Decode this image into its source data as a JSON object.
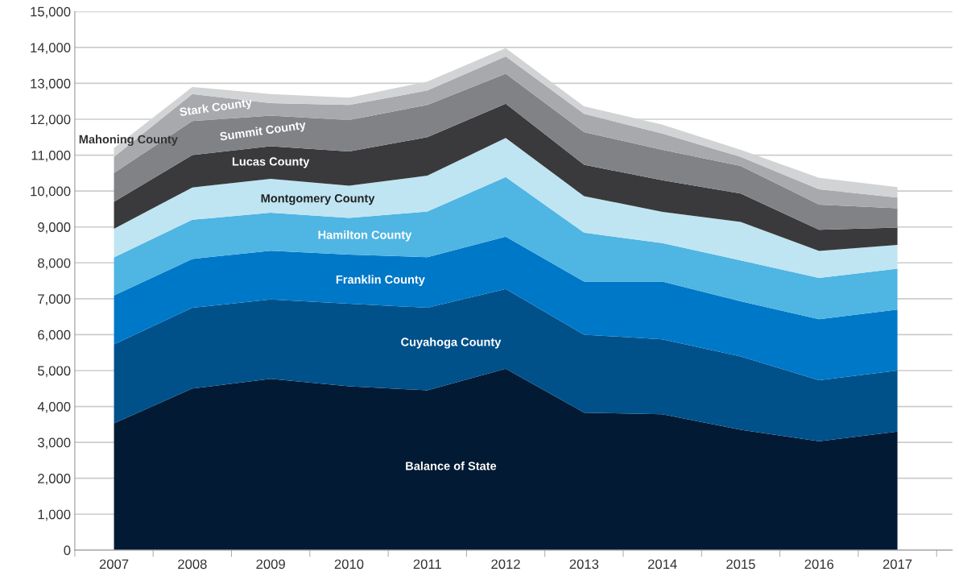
{
  "chart_data": {
    "type": "area",
    "stacked": true,
    "grid": "y",
    "legend": false,
    "categories": [
      "2007",
      "2008",
      "2009",
      "2010",
      "2011",
      "2012",
      "2013",
      "2014",
      "2015",
      "2016",
      "2017"
    ],
    "ylim": [
      0,
      15000
    ],
    "yticks": [
      0,
      {
        "value": 1000,
        "label": "1,000"
      },
      {
        "value": 2000,
        "label": "2,000"
      },
      {
        "value": 3000,
        "label": "3,000"
      },
      {
        "value": 4000,
        "label": "4,000"
      },
      {
        "value": 5000,
        "label": "5,000"
      },
      {
        "value": 6000,
        "label": "6,000"
      },
      {
        "value": 7000,
        "label": "7,000"
      },
      {
        "value": 8000,
        "label": "8,000"
      },
      {
        "value": 9000,
        "label": "9,000"
      },
      {
        "value": 10000,
        "label": "10,000"
      },
      {
        "value": 11000,
        "label": "11,000"
      },
      {
        "value": 12000,
        "label": "12,000"
      },
      {
        "value": 13000,
        "label": "13,000"
      },
      {
        "value": 14000,
        "label": "14,000"
      },
      {
        "value": 15000,
        "label": "15,000"
      }
    ],
    "series": [
      {
        "name": "Balance of State",
        "color": "#021a33",
        "values": [
          3530,
          4500,
          4770,
          4560,
          4450,
          5050,
          3830,
          3780,
          3350,
          3030,
          3300
        ]
      },
      {
        "name": "Cuyahoga County",
        "color": "#00508a",
        "values": [
          2200,
          2250,
          2210,
          2300,
          2300,
          2220,
          2170,
          2090,
          2040,
          1700,
          1700
        ]
      },
      {
        "name": "Franklin County",
        "color": "#0078c8",
        "values": [
          1360,
          1360,
          1360,
          1370,
          1410,
          1460,
          1480,
          1610,
          1540,
          1700,
          1700
        ]
      },
      {
        "name": "Hamilton County",
        "color": "#4fb5e3",
        "values": [
          1060,
          1090,
          1060,
          1020,
          1270,
          1660,
          1360,
          1070,
          1140,
          1150,
          1140
        ]
      },
      {
        "name": "Montgomery County",
        "color": "#bfe5f2",
        "values": [
          800,
          900,
          940,
          900,
          1000,
          1090,
          1020,
          870,
          1070,
          750,
          660
        ]
      },
      {
        "name": "Lucas County",
        "color": "#3a3a3c",
        "values": [
          750,
          900,
          910,
          950,
          1070,
          950,
          870,
          880,
          790,
          590,
          480
        ]
      },
      {
        "name": "Summit County",
        "color": "#808285",
        "values": [
          800,
          950,
          850,
          880,
          900,
          840,
          910,
          850,
          770,
          700,
          540
        ]
      },
      {
        "name": "Stark County",
        "color": "#a7a9ac",
        "values": [
          450,
          750,
          350,
          420,
          400,
          480,
          510,
          450,
          250,
          430,
          300
        ]
      },
      {
        "name": "Mahoning County",
        "color": "#d1d3d4",
        "values": [
          250,
          200,
          250,
          200,
          250,
          230,
          210,
          250,
          200,
          320,
          290
        ]
      }
    ]
  }
}
